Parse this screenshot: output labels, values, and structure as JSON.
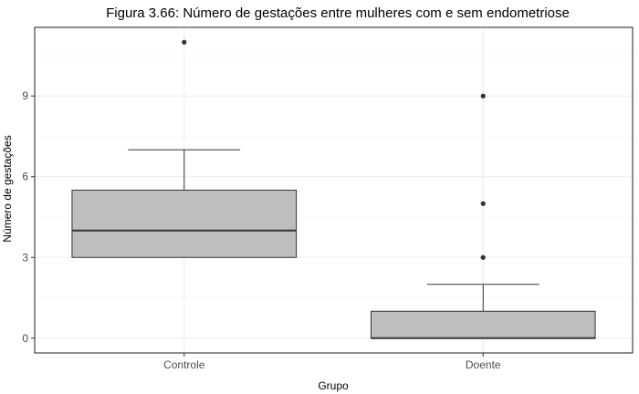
{
  "chart_data": {
    "type": "boxplot",
    "title": "Figura 3.66: Número de gestações entre mulheres com e sem endometriose",
    "xlabel": "Grupo",
    "ylabel": "Número de gestações",
    "categories": [
      "Controle",
      "Doente"
    ],
    "ylim": [
      -0.55,
      11.55
    ],
    "yticks": [
      0,
      3,
      6,
      9
    ],
    "grid": true,
    "box_color": "#bebebe",
    "line_color": "#333333",
    "series": [
      {
        "category": "Controle",
        "whisker_low": 3,
        "q1": 3,
        "median": 4,
        "q3": 5.5,
        "whisker_high": 7,
        "outliers": [
          11
        ]
      },
      {
        "category": "Doente",
        "whisker_low": 0,
        "q1": 0,
        "median": 0,
        "q3": 1,
        "whisker_high": 2,
        "outliers": [
          3,
          5,
          9
        ]
      }
    ]
  }
}
